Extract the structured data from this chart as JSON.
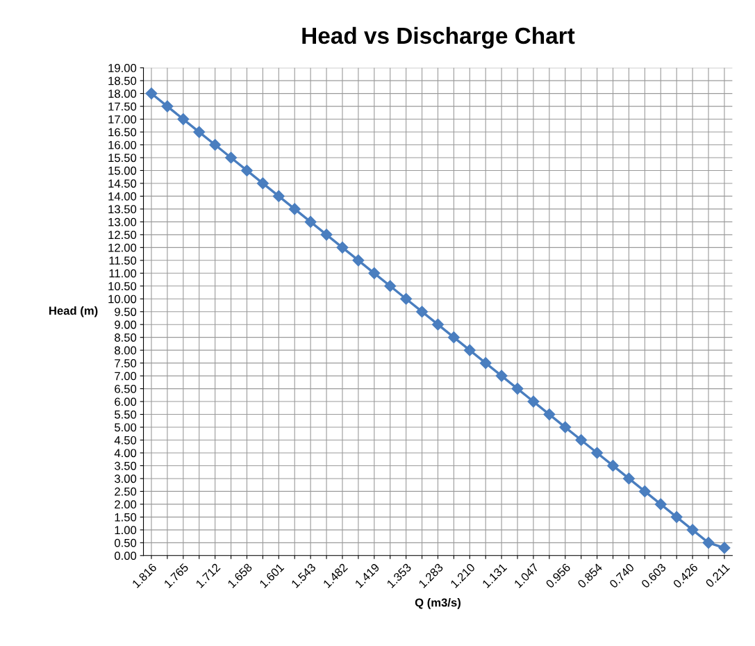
{
  "chart_data": {
    "type": "line",
    "title": "Head vs Discharge Chart",
    "xlabel": "Q (m3/s)",
    "ylabel": "Head (m)",
    "categories": [
      "1.816",
      null,
      "1.765",
      null,
      "1.712",
      null,
      "1.658",
      null,
      "1.601",
      null,
      "1.543",
      null,
      "1.482",
      null,
      "1.419",
      null,
      "1.353",
      null,
      "1.283",
      null,
      "1.210",
      null,
      "1.131",
      null,
      "1.047",
      null,
      "0.956",
      null,
      "0.854",
      null,
      "0.740",
      null,
      "0.603",
      null,
      "0.426",
      null,
      "0.211"
    ],
    "series": [
      {
        "color": "#4a7ebf",
        "values": [
          18.0,
          17.5,
          17.0,
          16.5,
          16.0,
          15.5,
          15.0,
          14.5,
          14.0,
          13.5,
          13.0,
          12.5,
          12.0,
          11.5,
          11.0,
          10.5,
          10.0,
          9.5,
          9.0,
          8.5,
          8.0,
          7.5,
          7.0,
          6.5,
          6.0,
          5.5,
          5.0,
          4.5,
          4.0,
          3.5,
          3.0,
          2.5,
          2.0,
          1.5,
          1.0,
          0.5,
          0.3
        ]
      }
    ],
    "ylim": [
      0,
      19
    ],
    "yticks": [
      {
        "value": 0,
        "label": "0.00"
      },
      {
        "value": 0.5,
        "label": "0.50"
      },
      {
        "value": 1,
        "label": "1.00"
      },
      {
        "value": 1.5,
        "label": "1.50"
      },
      {
        "value": 2,
        "label": "2.00"
      },
      {
        "value": 2.5,
        "label": "2.50"
      },
      {
        "value": 3,
        "label": "3.00"
      },
      {
        "value": 3.5,
        "label": "3.50"
      },
      {
        "value": 4,
        "label": "4.00"
      },
      {
        "value": 4.5,
        "label": "4.50"
      },
      {
        "value": 5,
        "label": "5.00"
      },
      {
        "value": 5.5,
        "label": "5.50"
      },
      {
        "value": 6,
        "label": "6.00"
      },
      {
        "value": 6.5,
        "label": "6.50"
      },
      {
        "value": 7,
        "label": "7.00"
      },
      {
        "value": 7.5,
        "label": "7.50"
      },
      {
        "value": 8,
        "label": "8.00"
      },
      {
        "value": 8.5,
        "label": "8.50"
      },
      {
        "value": 9,
        "label": "9.00"
      },
      {
        "value": 9.5,
        "label": "9.50"
      },
      {
        "value": 10,
        "label": "10.00"
      },
      {
        "value": 10.5,
        "label": "10.50"
      },
      {
        "value": 11,
        "label": "11.00"
      },
      {
        "value": 11.5,
        "label": "11.50"
      },
      {
        "value": 12,
        "label": "12.00"
      },
      {
        "value": 12.5,
        "label": "12.50"
      },
      {
        "value": 13,
        "label": "13.00"
      },
      {
        "value": 13.5,
        "label": "13.50"
      },
      {
        "value": 14,
        "label": "14.00"
      },
      {
        "value": 14.5,
        "label": "14.50"
      },
      {
        "value": 15,
        "label": "15.00"
      },
      {
        "value": 15.5,
        "label": "15.50"
      },
      {
        "value": 16,
        "label": "16.00"
      },
      {
        "value": 16.5,
        "label": "16.50"
      },
      {
        "value": 17,
        "label": "17.00"
      },
      {
        "value": 17.5,
        "label": "17.50"
      },
      {
        "value": 18,
        "label": "18.00"
      },
      {
        "value": 18.5,
        "label": "18.50"
      },
      {
        "value": 19,
        "label": "19.00"
      }
    ],
    "grid": true,
    "marker": "diamond",
    "line_style": "solid"
  }
}
